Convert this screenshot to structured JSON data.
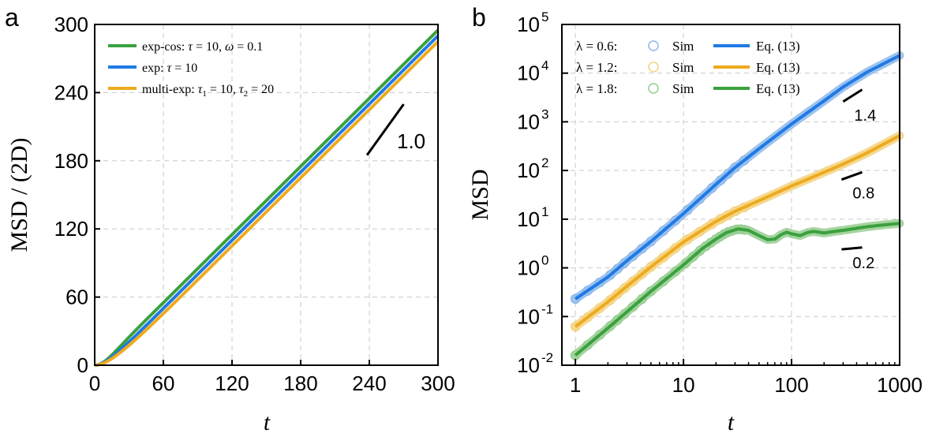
{
  "chart_data": [
    {
      "panel": "a",
      "type": "line",
      "xlabel": "t",
      "ylabel": "MSD / (2D)",
      "xlim": [
        0,
        300
      ],
      "ylim": [
        0,
        300
      ],
      "x_ticks": [
        0,
        60,
        120,
        180,
        240,
        300
      ],
      "y_ticks": [
        0,
        60,
        120,
        180,
        240,
        300
      ],
      "x_tick_labels": [
        "0",
        "60",
        "120",
        "180",
        "240",
        "300"
      ],
      "y_tick_labels": [
        "0",
        "60",
        "120",
        "180",
        "240",
        "300"
      ],
      "grid": true,
      "legend_position": "top-left",
      "series": [
        {
          "name": "exp-cos",
          "legend": {
            "name": "exp-cos:",
            "p1_sym": "τ",
            "p1_val": "= 10,",
            "p2_sym": "ω",
            "p2_val": "= 0.1"
          },
          "color": "#3aa13e",
          "model": "expcos",
          "params": {
            "tau": 10,
            "omega": 0.1
          }
        },
        {
          "name": "exp",
          "legend": {
            "name": "exp:",
            "p1_sym": "τ",
            "p1_val": "= 10"
          },
          "color": "#1f7ae5",
          "model": "exp",
          "params": {
            "tau": 10
          }
        },
        {
          "name": "multi-exp",
          "legend": {
            "name": "multi-exp:",
            "p1_sym": "τ",
            "p1_sub": "1",
            "p1_val": "= 10,",
            "p2_sym": "τ",
            "p2_sub": "2",
            "p2_val": "= 20"
          },
          "color": "#eeaa1e",
          "model": "multiexp",
          "params": {
            "tau1": 10,
            "tau2": 20
          }
        }
      ],
      "annotation": {
        "label": "1.0",
        "slope": 1.0,
        "x_range": [
          238,
          270
        ]
      }
    },
    {
      "panel": "b",
      "type": "line",
      "xscale": "log",
      "yscale": "log",
      "xlabel": "t",
      "ylabel": "MSD",
      "xlim": [
        0.75,
        1000
      ],
      "ylim": [
        0.01,
        100000
      ],
      "x_ticks": [
        1,
        10,
        100,
        1000
      ],
      "x_tick_labels": [
        "1",
        "10",
        "100",
        "1000"
      ],
      "y_tick_exponents": [
        -2,
        -1,
        0,
        1,
        2,
        3,
        4,
        5
      ],
      "y_tick_base": "10",
      "grid": true,
      "legend_position": "top-left",
      "sim_label": "Sim",
      "theory_label": "Eq. (13)",
      "series": [
        {
          "lambda_label": "λ = 0.6:",
          "color": "#1f7ae5",
          "band_color": "#8db8ea",
          "points": [
            [
              1,
              0.23
            ],
            [
              2,
              0.65
            ],
            [
              3,
              1.4
            ],
            [
              5,
              3.5
            ],
            [
              10,
              13
            ],
            [
              20,
              52
            ],
            [
              30,
              115
            ],
            [
              50,
              280
            ],
            [
              100,
              900
            ],
            [
              200,
              2700
            ],
            [
              300,
              5200
            ],
            [
              500,
              10500
            ],
            [
              1000,
              23000
            ]
          ]
        },
        {
          "lambda_label": "λ = 1.2:",
          "color": "#eeaa1e",
          "band_color": "#f3d27e",
          "points": [
            [
              1,
              0.062
            ],
            [
              2,
              0.2
            ],
            [
              3,
              0.42
            ],
            [
              5,
              1.05
            ],
            [
              10,
              3.4
            ],
            [
              20,
              9
            ],
            [
              30,
              14.5
            ],
            [
              50,
              24
            ],
            [
              100,
              48
            ],
            [
              200,
              92
            ],
            [
              300,
              135
            ],
            [
              500,
              230
            ],
            [
              1000,
              520
            ]
          ]
        },
        {
          "lambda_label": "λ = 1.8:",
          "color": "#3aa13e",
          "band_color": "#97cd91",
          "points": [
            [
              1,
              0.016
            ],
            [
              2,
              0.058
            ],
            [
              3,
              0.125
            ],
            [
              5,
              0.33
            ],
            [
              10,
              1.15
            ],
            [
              15,
              2.5
            ],
            [
              20,
              3.9
            ],
            [
              25,
              5.3
            ],
            [
              32,
              6.3
            ],
            [
              40,
              5.9
            ],
            [
              50,
              4.6
            ],
            [
              60,
              3.8
            ],
            [
              70,
              3.9
            ],
            [
              80,
              4.8
            ],
            [
              90,
              5.4
            ],
            [
              100,
              5.0
            ],
            [
              120,
              4.6
            ],
            [
              140,
              5.3
            ],
            [
              160,
              5.6
            ],
            [
              200,
              5.2
            ],
            [
              250,
              5.6
            ],
            [
              300,
              5.9
            ],
            [
              400,
              6.5
            ],
            [
              500,
              7.0
            ],
            [
              700,
              7.6
            ],
            [
              1000,
              8.2
            ]
          ]
        }
      ],
      "slope_markers": [
        {
          "label": "1.4",
          "slope": 1.4,
          "x_range": [
            300,
            450
          ],
          "anchor_y": 2600
        },
        {
          "label": "0.8",
          "slope": 0.8,
          "x_range": [
            290,
            450
          ],
          "anchor_y": 65
        },
        {
          "label": "0.2",
          "slope": 0.2,
          "x_range": [
            290,
            450
          ],
          "anchor_y": 2.4
        }
      ]
    }
  ],
  "panel_labels": {
    "a": "a",
    "b": "b"
  }
}
